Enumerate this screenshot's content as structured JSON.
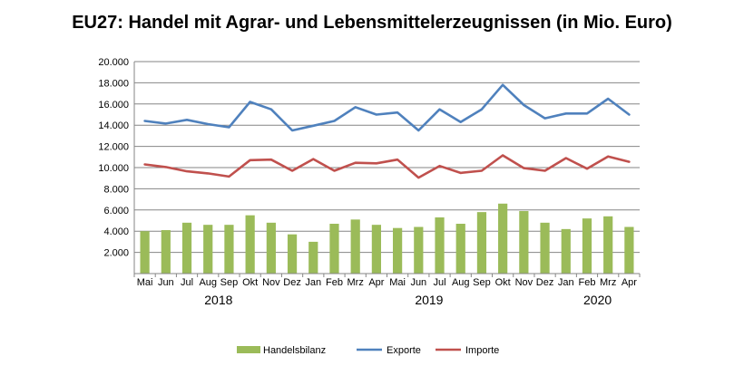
{
  "chart_data": {
    "type": "bar",
    "title": "EU27: Handel mit Agrar- und Lebensmittelerzeugnissen (in Mio. Euro)",
    "categories": [
      "Mai",
      "Jun",
      "Jul",
      "Aug",
      "Sep",
      "Okt",
      "Nov",
      "Dez",
      "Jan",
      "Feb",
      "Mrz",
      "Apr",
      "Mai",
      "Jun",
      "Jul",
      "Aug",
      "Sep",
      "Okt",
      "Nov",
      "Dez",
      "Jan",
      "Feb",
      "Mrz",
      "Apr"
    ],
    "year_labels": [
      {
        "label": "2018",
        "from": 0,
        "to": 7
      },
      {
        "label": "2019",
        "from": 8,
        "to": 19
      },
      {
        "label": "2020",
        "from": 20,
        "to": 23
      }
    ],
    "series": [
      {
        "name": "Handelsbilanz",
        "type": "bar",
        "color": "#9bbb59",
        "values": [
          4000,
          4100,
          4800,
          4600,
          4600,
          5500,
          4800,
          3700,
          3000,
          4700,
          5100,
          4600,
          4300,
          4400,
          5300,
          4700,
          5800,
          6600,
          5900,
          4800,
          4200,
          5200,
          5400,
          4400
        ]
      },
      {
        "name": "Exporte",
        "type": "line",
        "color": "#4f81bd",
        "values": [
          14400,
          14150,
          14500,
          14100,
          13800,
          16200,
          15500,
          13500,
          13950,
          14400,
          15700,
          15000,
          15200,
          13500,
          15500,
          14300,
          15500,
          17800,
          15900,
          14650,
          15100,
          15100,
          16500,
          15000
        ]
      },
      {
        "name": "Importe",
        "type": "line",
        "color": "#c0504d",
        "values": [
          10300,
          10050,
          9650,
          9450,
          9150,
          10700,
          10750,
          9700,
          10800,
          9700,
          10450,
          10400,
          10750,
          9050,
          10150,
          9500,
          9700,
          11150,
          9950,
          9700,
          10900,
          9900,
          11050,
          10550
        ]
      }
    ],
    "ylim": [
      0,
      20000
    ],
    "yticks": [
      {
        "value": 2000,
        "label": "2.000"
      },
      {
        "value": 4000,
        "label": "4.000"
      },
      {
        "value": 6000,
        "label": "6.000"
      },
      {
        "value": 8000,
        "label": "8.000"
      },
      {
        "value": 10000,
        "label": "10.000"
      },
      {
        "value": 12000,
        "label": "12.000"
      },
      {
        "value": 14000,
        "label": "14.000"
      },
      {
        "value": 16000,
        "label": "16.000"
      },
      {
        "value": 18000,
        "label": "18.000"
      },
      {
        "value": 20000,
        "label": "20.000"
      }
    ],
    "grid": true,
    "gridColor": "#868686",
    "legend_position": "bottom"
  }
}
